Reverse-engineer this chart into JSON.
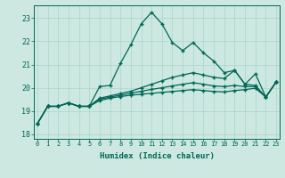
{
  "xlabel": "Humidex (Indice chaleur)",
  "background_color": "#cce8e0",
  "line_color": "#006655",
  "grid_color": "#aad4cc",
  "x_ticks": [
    0,
    1,
    2,
    3,
    4,
    5,
    6,
    7,
    8,
    9,
    10,
    11,
    12,
    13,
    14,
    15,
    16,
    17,
    18,
    19,
    20,
    21,
    22,
    23
  ],
  "y_ticks": [
    18,
    19,
    20,
    21,
    22,
    23
  ],
  "xlim": [
    -0.3,
    23.3
  ],
  "ylim": [
    17.8,
    23.55
  ],
  "series": [
    [
      18.45,
      19.2,
      19.2,
      19.35,
      19.2,
      19.2,
      20.05,
      20.1,
      21.05,
      21.85,
      22.75,
      23.25,
      22.75,
      21.95,
      21.6,
      21.95,
      21.5,
      21.15,
      20.65,
      20.75,
      20.15,
      20.6,
      19.6,
      20.25
    ],
    [
      18.45,
      19.2,
      19.2,
      19.35,
      19.2,
      19.2,
      19.55,
      19.65,
      19.75,
      19.85,
      20.0,
      20.15,
      20.3,
      20.45,
      20.55,
      20.65,
      20.55,
      20.45,
      20.4,
      20.75,
      20.15,
      20.1,
      19.6,
      20.25
    ],
    [
      18.45,
      19.2,
      19.2,
      19.35,
      19.2,
      19.2,
      19.5,
      19.6,
      19.68,
      19.76,
      19.85,
      19.93,
      20.0,
      20.08,
      20.15,
      20.22,
      20.15,
      20.08,
      20.05,
      20.1,
      20.05,
      20.05,
      19.6,
      20.25
    ],
    [
      18.45,
      19.2,
      19.2,
      19.35,
      19.2,
      19.2,
      19.45,
      19.55,
      19.62,
      19.68,
      19.72,
      19.76,
      19.8,
      19.84,
      19.88,
      19.92,
      19.88,
      19.84,
      19.82,
      19.88,
      19.92,
      19.98,
      19.6,
      20.25
    ]
  ]
}
